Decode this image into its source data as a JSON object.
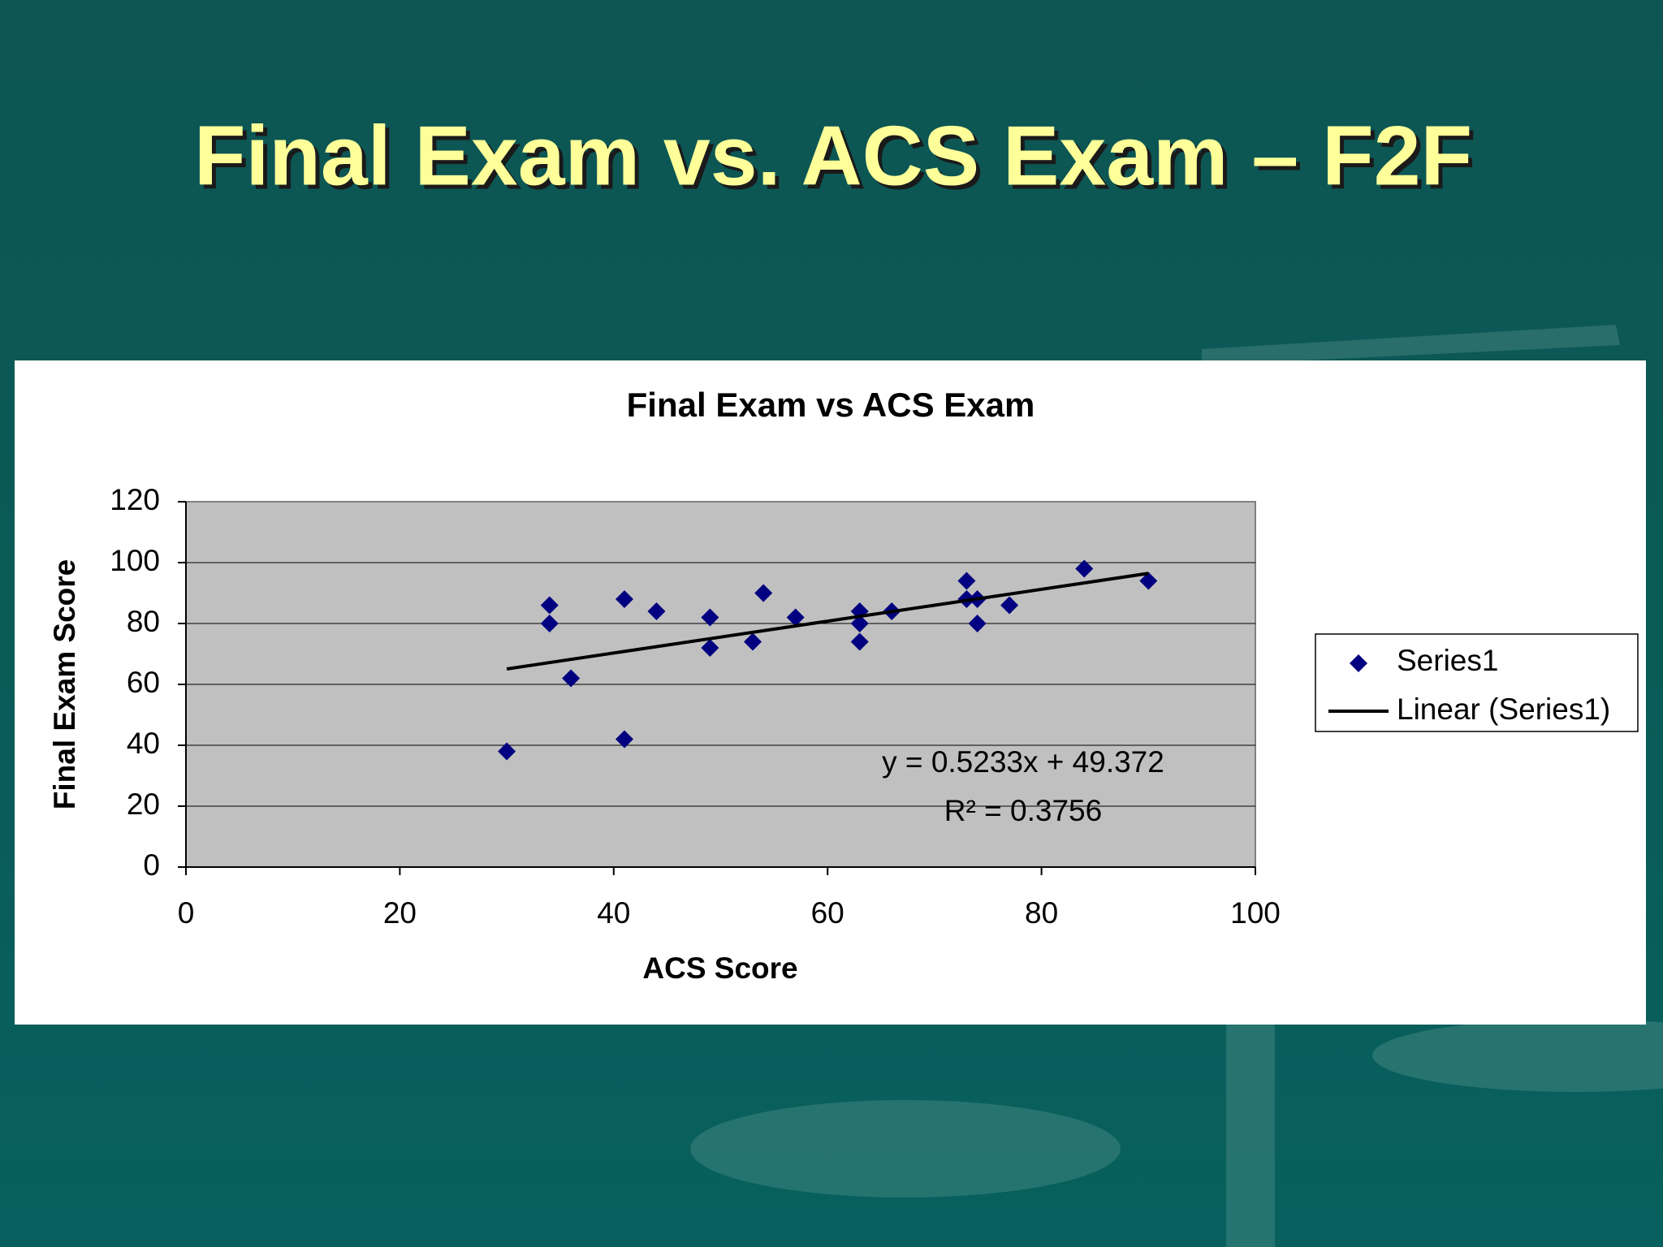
{
  "slide_title": "Final Exam vs. ACS Exam – F2F",
  "chart_data": {
    "type": "scatter",
    "title": "Final Exam vs ACS Exam",
    "x_label": "ACS Score",
    "y_label": "Final Exam Score",
    "series": [
      {
        "name": "Series1",
        "color": "#000080",
        "x": [
          30,
          34,
          34,
          36,
          41,
          41,
          44,
          49,
          49,
          53,
          54,
          57,
          63,
          63,
          63,
          66,
          73,
          73,
          74,
          74,
          77,
          84,
          90
        ],
        "values": [
          38,
          86,
          80,
          62,
          88,
          42,
          84,
          82,
          72,
          74,
          90,
          82,
          84,
          80,
          74,
          84,
          94,
          88,
          88,
          80,
          86,
          98,
          94
        ]
      }
    ],
    "trendline": {
      "name": "Linear (Series1)",
      "color": "#000000",
      "slope": 0.5233,
      "intercept": 49.372,
      "equation": "y = 0.5233x + 49.372",
      "r2_label": "R² = 0.3756",
      "r2": 0.3756
    },
    "xlim": [
      0,
      100
    ],
    "xticks": [
      0,
      20,
      40,
      60,
      80,
      100
    ],
    "ylim": [
      0,
      120
    ],
    "yticks": [
      0,
      20,
      40,
      60,
      80,
      100,
      120
    ],
    "grid": true,
    "legend": "right"
  }
}
